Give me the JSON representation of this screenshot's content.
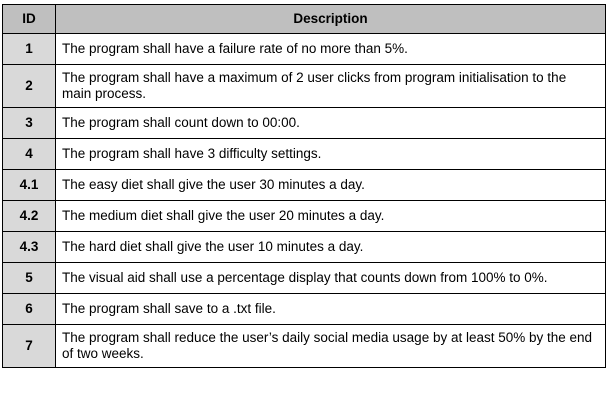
{
  "table": {
    "headers": {
      "id": "ID",
      "description": "Description"
    },
    "rows": [
      {
        "id": "1",
        "description": "The program shall have a failure rate of no more than 5%."
      },
      {
        "id": "2",
        "description": "The program shall have a maximum of 2 user clicks from program initialisation to the main process."
      },
      {
        "id": "3",
        "description": "The program shall count down to 00:00."
      },
      {
        "id": "4",
        "description": "The program shall have 3 difficulty settings."
      },
      {
        "id": "4.1",
        "description": "The easy diet shall give the user 30 minutes a day."
      },
      {
        "id": "4.2",
        "description": "The medium diet shall give the user 20 minutes a day."
      },
      {
        "id": "4.3",
        "description": "The hard diet shall give the user 10 minutes a day."
      },
      {
        "id": "5",
        "description": "The visual aid shall use a percentage display that counts down from 100% to 0%."
      },
      {
        "id": "6",
        "description": "The program shall save to a .txt file."
      },
      {
        "id": "7",
        "description": "The program shall reduce the user’s daily social media usage by at least 50% by the end of two weeks."
      }
    ],
    "colors": {
      "header_bg": "#bfbfbf",
      "id_cell_bg": "#d9d9d9",
      "border": "#000000"
    }
  }
}
